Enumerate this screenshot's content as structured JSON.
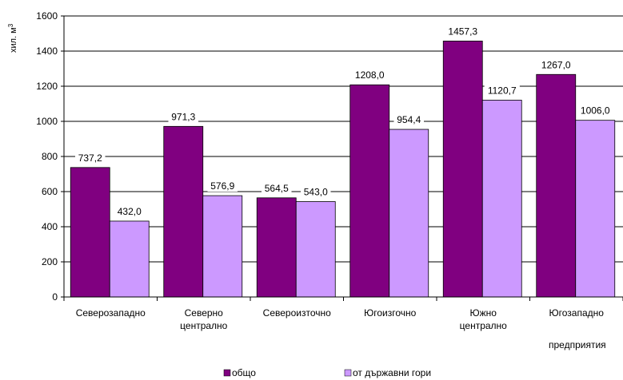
{
  "chart_data": {
    "type": "bar",
    "title": "",
    "ylabel": "хил. м",
    "ylabel_superscript": "3",
    "xlabel": "",
    "ylim": [
      0,
      1600
    ],
    "yticks": [
      0,
      200,
      400,
      600,
      800,
      1000,
      1200,
      1400,
      1600
    ],
    "grid": true,
    "legend_position": "bottom",
    "categories": [
      [
        "Северозападно"
      ],
      [
        "Северно",
        "централно"
      ],
      [
        "Североизточно"
      ],
      [
        "Югоизгочно"
      ],
      [
        "Южно",
        "централно"
      ],
      [
        "Югозападно"
      ]
    ],
    "series": [
      {
        "name": "общо",
        "color": "#800080",
        "values": [
          737.2,
          971.3,
          564.5,
          1208.0,
          1457.3,
          1267.0
        ],
        "labels": [
          "737,2",
          "971,3",
          "564,5",
          "1208,0",
          "1457,3",
          "1267,0"
        ]
      },
      {
        "name": "от държавни гори",
        "color": "#CC99FF",
        "values": [
          432.0,
          576.9,
          543.0,
          954.4,
          1120.7,
          1006.0
        ],
        "labels": [
          "432,0",
          "576,9",
          "543,0",
          "954,4",
          "1120,7",
          "1006,0"
        ]
      }
    ],
    "annotation": "предприятия"
  }
}
